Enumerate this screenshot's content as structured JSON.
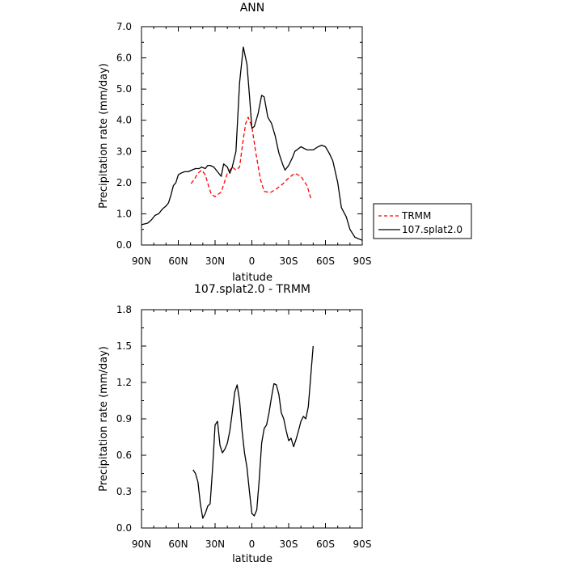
{
  "chart_data": [
    {
      "type": "line",
      "title": "ANN",
      "xlabel": "latitude",
      "ylabel": "Precipitation rate (mm/day)",
      "xlim": [
        90,
        -90
      ],
      "ylim": [
        0,
        7
      ],
      "x_tick_values": [
        90,
        60,
        30,
        0,
        -30,
        -60,
        -90
      ],
      "x_tick_labels": [
        "90N",
        "60N",
        "30N",
        "0",
        "30S",
        "60S",
        "90S"
      ],
      "y_tick_values": [
        0,
        1,
        2,
        3,
        4,
        5,
        6,
        7
      ],
      "y_tick_labels": [
        "0.0",
        "1.0",
        "2.0",
        "3.0",
        "4.0",
        "5.0",
        "6.0",
        "7.0"
      ],
      "legend_position": "right",
      "series": [
        {
          "name": "TRMM",
          "color": "#ff0000",
          "dash": "dashed",
          "x": [
            -48,
            -45,
            -40,
            -35,
            -30,
            -25,
            -20,
            -15,
            -10,
            -7,
            -3,
            0,
            3,
            5,
            7,
            10,
            13,
            16,
            20,
            25,
            30,
            33,
            35,
            38,
            41,
            44,
            47,
            50
          ],
          "y": [
            1.5,
            1.9,
            2.2,
            2.3,
            2.15,
            1.95,
            1.8,
            1.68,
            1.72,
            2.1,
            3.0,
            3.8,
            4.1,
            3.9,
            3.4,
            2.5,
            2.4,
            2.5,
            2.3,
            1.7,
            1.55,
            1.62,
            1.85,
            2.25,
            2.4,
            2.3,
            2.1,
            1.95
          ]
        },
        {
          "name": "107.splat2.0",
          "color": "#000000",
          "dash": "solid",
          "x": [
            -90,
            -87,
            -84,
            -80,
            -77,
            -73,
            -70,
            -66,
            -63,
            -60,
            -57,
            -54,
            -50,
            -45,
            -40,
            -35,
            -33,
            -30,
            -27,
            -25,
            -22,
            -19,
            -16,
            -13,
            -10,
            -8,
            -5,
            -2,
            0,
            2,
            4,
            7,
            10,
            13,
            16,
            18,
            20,
            23,
            25,
            28,
            31,
            34,
            36,
            38,
            41,
            43,
            46,
            49,
            52,
            55,
            58,
            60,
            62,
            64,
            66,
            68,
            70,
            73,
            76,
            79,
            82,
            85,
            87,
            90
          ],
          "y": [
            0.15,
            0.2,
            0.25,
            0.5,
            0.9,
            1.2,
            2.0,
            2.7,
            2.95,
            3.15,
            3.2,
            3.15,
            3.05,
            3.05,
            3.15,
            3.0,
            2.8,
            2.55,
            2.4,
            2.6,
            2.95,
            3.5,
            3.9,
            4.1,
            4.75,
            4.8,
            4.2,
            3.8,
            3.75,
            4.8,
            5.8,
            6.35,
            5.2,
            3.0,
            2.5,
            2.3,
            2.5,
            2.6,
            2.2,
            2.35,
            2.5,
            2.55,
            2.55,
            2.45,
            2.5,
            2.45,
            2.45,
            2.4,
            2.35,
            2.35,
            2.3,
            2.25,
            2.0,
            1.9,
            1.6,
            1.35,
            1.25,
            1.15,
            1.0,
            0.95,
            0.8,
            0.7,
            0.68,
            0.65
          ]
        }
      ]
    },
    {
      "type": "line",
      "title": "107.splat2.0 - TRMM",
      "xlabel": "latitude",
      "ylabel": "Precipitation rate (mm/day)",
      "xlim": [
        90,
        -90
      ],
      "ylim": [
        0,
        1.8
      ],
      "x_tick_values": [
        90,
        60,
        30,
        0,
        -30,
        -60,
        -90
      ],
      "x_tick_labels": [
        "90N",
        "60N",
        "30N",
        "0",
        "30S",
        "60S",
        "90S"
      ],
      "y_tick_values": [
        0,
        0.3,
        0.6,
        0.9,
        1.2,
        1.5,
        1.8
      ],
      "y_tick_labels": [
        "0.0",
        "0.3",
        "0.6",
        "0.9",
        "1.2",
        "1.5",
        "1.8"
      ],
      "series": [
        {
          "color": "#000000",
          "dash": "solid",
          "x": [
            -50,
            -48,
            -46,
            -44,
            -42,
            -40,
            -38,
            -36,
            -34,
            -32,
            -30,
            -28,
            -26,
            -24,
            -22,
            -20,
            -18,
            -16,
            -14,
            -12,
            -10,
            -8,
            -6,
            -4,
            -2,
            0,
            2,
            4,
            6,
            8,
            10,
            12,
            14,
            16,
            18,
            20,
            22,
            24,
            26,
            28,
            30,
            32,
            34,
            36,
            38,
            40,
            42,
            44,
            46,
            48
          ],
          "y": [
            1.5,
            1.25,
            1.0,
            0.9,
            0.92,
            0.88,
            0.8,
            0.73,
            0.67,
            0.74,
            0.72,
            0.8,
            0.9,
            0.95,
            1.1,
            1.18,
            1.19,
            1.08,
            0.95,
            0.85,
            0.82,
            0.7,
            0.4,
            0.15,
            0.1,
            0.12,
            0.3,
            0.5,
            0.62,
            0.8,
            1.05,
            1.18,
            1.12,
            0.95,
            0.8,
            0.7,
            0.65,
            0.62,
            0.68,
            0.88,
            0.85,
            0.5,
            0.2,
            0.18,
            0.12,
            0.08,
            0.2,
            0.38,
            0.45,
            0.48
          ]
        }
      ]
    }
  ]
}
